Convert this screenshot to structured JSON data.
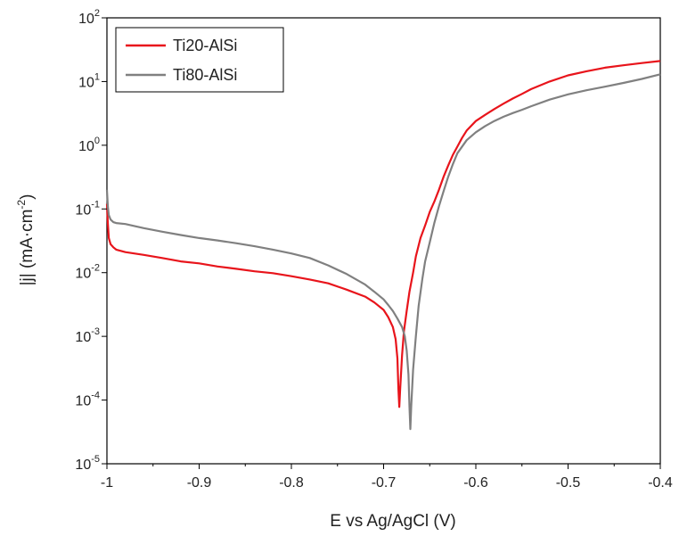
{
  "chart_data": {
    "type": "line",
    "title": "",
    "xlabel": "E vs Ag/AgCl (V)",
    "ylabel": "|j| (mA·cm⁻²)",
    "ylabel_parts": {
      "main": "|j| (mA·cm",
      "sup": "-2",
      "end": ")"
    },
    "xlim": [
      -1.0,
      -0.4
    ],
    "ylim": [
      1e-05,
      100
    ],
    "yscale": "log",
    "grid": false,
    "legend_position": "top-left",
    "x_ticks": [
      {
        "value": -1.0,
        "label": "-1"
      },
      {
        "value": -0.9,
        "label": "-0.9"
      },
      {
        "value": -0.8,
        "label": "-0.8"
      },
      {
        "value": -0.7,
        "label": "-0.7"
      },
      {
        "value": -0.6,
        "label": "-0.6"
      },
      {
        "value": -0.5,
        "label": "-0.5"
      },
      {
        "value": -0.4,
        "label": "-0.4"
      }
    ],
    "y_ticks": [
      {
        "exp": -5,
        "base": "10",
        "sup": "-5"
      },
      {
        "exp": -4,
        "base": "10",
        "sup": "-4"
      },
      {
        "exp": -3,
        "base": "10",
        "sup": "-3"
      },
      {
        "exp": -2,
        "base": "10",
        "sup": "-2"
      },
      {
        "exp": -1,
        "base": "10",
        "sup": "-1"
      },
      {
        "exp": 0,
        "base": "10",
        "sup": "0"
      },
      {
        "exp": 1,
        "base": "10",
        "sup": "1"
      },
      {
        "exp": 2,
        "base": "10",
        "sup": "2"
      }
    ],
    "series": [
      {
        "name": "Ti20-AlSi",
        "color": "#e8141b",
        "x": [
          -1.0,
          -0.999,
          -0.998,
          -0.996,
          -0.993,
          -0.99,
          -0.98,
          -0.96,
          -0.94,
          -0.92,
          -0.9,
          -0.88,
          -0.86,
          -0.84,
          -0.82,
          -0.8,
          -0.78,
          -0.76,
          -0.74,
          -0.72,
          -0.71,
          -0.7,
          -0.695,
          -0.69,
          -0.687,
          -0.685,
          -0.684,
          -0.683,
          -0.682,
          -0.68,
          -0.678,
          -0.675,
          -0.672,
          -0.668,
          -0.665,
          -0.66,
          -0.655,
          -0.65,
          -0.645,
          -0.64,
          -0.635,
          -0.63,
          -0.625,
          -0.62,
          -0.615,
          -0.61,
          -0.6,
          -0.59,
          -0.58,
          -0.57,
          -0.56,
          -0.55,
          -0.54,
          -0.52,
          -0.5,
          -0.48,
          -0.46,
          -0.44,
          -0.42,
          -0.4
        ],
        "y": [
          0.12,
          0.06,
          0.035,
          0.028,
          0.025,
          0.023,
          0.021,
          0.019,
          0.017,
          0.015,
          0.014,
          0.0125,
          0.0115,
          0.0105,
          0.0098,
          0.0088,
          0.0078,
          0.0068,
          0.0054,
          0.0042,
          0.0034,
          0.0026,
          0.002,
          0.0014,
          0.0009,
          0.00045,
          0.00015,
          7.8e-05,
          0.00015,
          0.0005,
          0.0012,
          0.0025,
          0.005,
          0.01,
          0.018,
          0.035,
          0.055,
          0.09,
          0.13,
          0.2,
          0.32,
          0.48,
          0.7,
          0.95,
          1.3,
          1.7,
          2.4,
          3.0,
          3.7,
          4.5,
          5.4,
          6.4,
          7.6,
          10.0,
          12.5,
          14.5,
          16.5,
          18.0,
          19.5,
          21.0
        ]
      },
      {
        "name": "Ti80-AlSi",
        "color": "#808080",
        "x": [
          -1.0,
          -0.999,
          -0.998,
          -0.996,
          -0.993,
          -0.99,
          -0.98,
          -0.96,
          -0.94,
          -0.92,
          -0.9,
          -0.88,
          -0.86,
          -0.84,
          -0.82,
          -0.8,
          -0.78,
          -0.76,
          -0.74,
          -0.72,
          -0.71,
          -0.7,
          -0.695,
          -0.69,
          -0.685,
          -0.68,
          -0.677,
          -0.675,
          -0.673,
          -0.672,
          -0.671,
          -0.67,
          -0.668,
          -0.665,
          -0.662,
          -0.658,
          -0.655,
          -0.65,
          -0.645,
          -0.64,
          -0.635,
          -0.63,
          -0.625,
          -0.62,
          -0.61,
          -0.6,
          -0.59,
          -0.58,
          -0.57,
          -0.56,
          -0.55,
          -0.54,
          -0.52,
          -0.5,
          -0.48,
          -0.46,
          -0.44,
          -0.42,
          -0.4
        ],
        "y": [
          0.2,
          0.11,
          0.08,
          0.068,
          0.062,
          0.06,
          0.058,
          0.05,
          0.044,
          0.039,
          0.035,
          0.032,
          0.029,
          0.026,
          0.023,
          0.02,
          0.017,
          0.013,
          0.0095,
          0.0065,
          0.005,
          0.0038,
          0.0031,
          0.0025,
          0.0019,
          0.0014,
          0.001,
          0.0006,
          0.00025,
          8e-05,
          3.5e-05,
          8e-05,
          0.0003,
          0.001,
          0.003,
          0.008,
          0.015,
          0.03,
          0.06,
          0.11,
          0.19,
          0.32,
          0.5,
          0.75,
          1.2,
          1.6,
          2.0,
          2.4,
          2.8,
          3.2,
          3.6,
          4.1,
          5.2,
          6.3,
          7.3,
          8.3,
          9.5,
          11.0,
          13.0
        ]
      }
    ]
  }
}
